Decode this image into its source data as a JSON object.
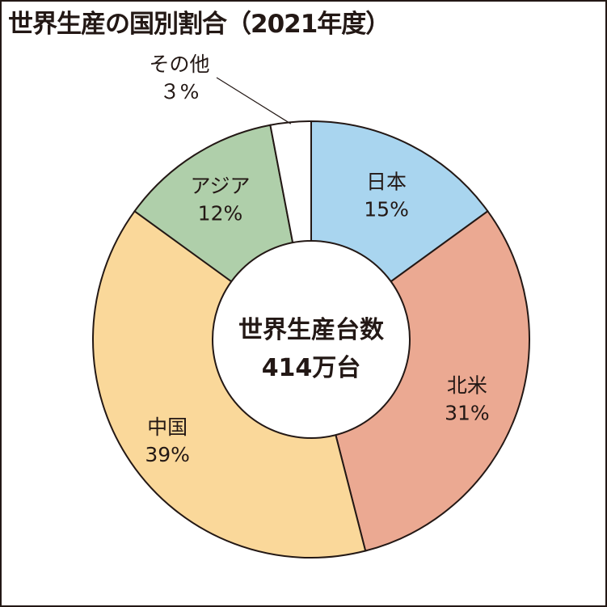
{
  "chart_data": {
    "type": "pie",
    "title": "世界生産の国別割合（2021年度）",
    "center_label": {
      "line1": "世界生産台数",
      "line2": "414万台"
    },
    "slices": [
      {
        "label": "日本",
        "value": 15,
        "value_label": "15%",
        "color": "#a9d5ef"
      },
      {
        "label": "北米",
        "value": 31,
        "value_label": "31%",
        "color": "#eba992"
      },
      {
        "label": "中国",
        "value": 39,
        "value_label": "39%",
        "color": "#fad89a"
      },
      {
        "label": "アジア",
        "value": 12,
        "value_label": "12%",
        "color": "#afcfaa"
      },
      {
        "label": "その他",
        "value": 3,
        "value_label": "３%",
        "color": "#ffffff"
      }
    ]
  }
}
